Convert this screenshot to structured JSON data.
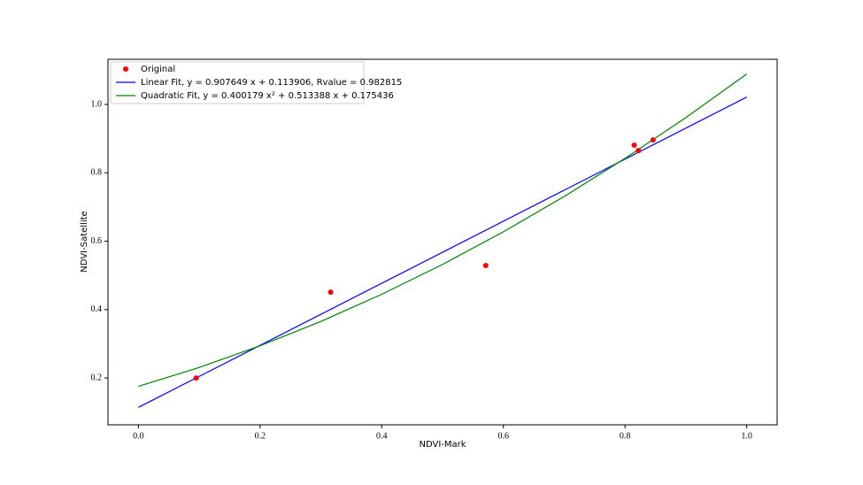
{
  "chart_data": {
    "type": "scatter",
    "xlabel": "NDVI-Mark",
    "ylabel": "NDVI-Satellite",
    "xlim": [
      -0.05,
      1.05
    ],
    "ylim": [
      0.063,
      1.132
    ],
    "xticks": [
      {
        "value": 0,
        "label": "0.0"
      },
      0.2,
      0.4,
      0.6,
      0.8,
      {
        "value": 1,
        "label": "1.0"
      }
    ],
    "yticks": [
      0.2,
      0.4,
      0.6,
      0.8,
      {
        "value": 1,
        "label": "1.0"
      }
    ],
    "grid": false,
    "legend": "upper left",
    "series": [
      {
        "name": "Original",
        "color": "#ff0000",
        "mark": "point",
        "x": [
          0.095,
          0.316,
          0.571,
          0.815,
          0.822,
          0.846
        ],
        "values": [
          0.2,
          0.451,
          0.529,
          0.881,
          0.865,
          0.896
        ]
      },
      {
        "name": "Linear Fit, y = 0.907649 x + 0.113906, Rvalue = 0.982815",
        "color": "#0000ff",
        "mark": "line",
        "x": [
          0,
          1
        ],
        "values": [
          0.113906,
          1.021555
        ]
      },
      {
        "name": "Quadratic Fit, y = 0.400179 x² + 0.513388 x + 0.175436",
        "color": "#008000",
        "mark": "line",
        "x": [
          0,
          0.1,
          0.2,
          0.3,
          0.4,
          0.5,
          0.6,
          0.7,
          0.8,
          0.9,
          1
        ],
        "values": [
          0.175436,
          0.230777,
          0.294121,
          0.365468,
          0.44482,
          0.532175,
          0.627533,
          0.730896,
          0.842261,
          0.96163,
          1.089003
        ]
      }
    ]
  }
}
